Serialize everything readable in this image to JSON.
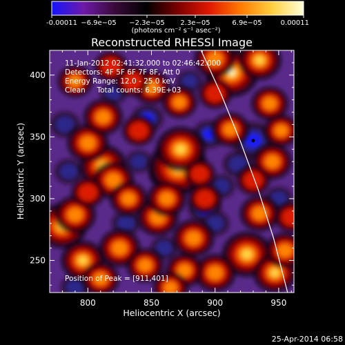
{
  "chart_data": {
    "type": "heatmap",
    "title": "Reconstructed RHESSI Image",
    "xlabel": "Heliocentric X (arcsec)",
    "ylabel": "Heliocentric Y (arcsec)",
    "xlim": [
      770,
      962
    ],
    "ylim": [
      224,
      420
    ],
    "xticks": [
      800,
      850,
      900,
      950
    ],
    "yticks": [
      250,
      300,
      350,
      400
    ],
    "grid": false,
    "colorbar": {
      "position": "top",
      "range": [
        -0.00011,
        0.00011
      ],
      "tick_labels": [
        "-0.00011",
        "−6.9e−05",
        "−2.3e−05",
        "2.3e−05",
        "6.9e−05",
        "0.00011"
      ],
      "label": "(photons cm⁻² s⁻¹ asec⁻²)",
      "colors": [
        "#1414ff",
        "#6e1aa8",
        "#3a0a3a",
        "#000000",
        "#7a0000",
        "#e01800",
        "#ff7a00",
        "#ffd040",
        "#ffffd8"
      ]
    },
    "annotations": [
      "11-Jan-2012 02:41:32.000 to 02:46:42.000",
      "Detectors: 4F 5F 6F 7F 8F, Att 0",
      "Energy Range: 12.0 - 25.0 keV",
      "Clean     Total counts: 6.39E+03"
    ],
    "peak_label": "Position of Peak = [911,401]",
    "peak": [
      911,
      401
    ],
    "marker": [
      930,
      347
    ],
    "limb_arc": [
      [
        889,
        420
      ],
      [
        905,
        384
      ],
      [
        920,
        346
      ],
      [
        934,
        307
      ],
      [
        946,
        268
      ],
      [
        957,
        224
      ]
    ],
    "hot_spots": [
      {
        "x": 871,
        "y": 325,
        "v": 1.0
      },
      {
        "x": 873,
        "y": 340,
        "v": 0.75
      },
      {
        "x": 855,
        "y": 285,
        "v": 0.55
      },
      {
        "x": 862,
        "y": 300,
        "v": 0.5
      },
      {
        "x": 883,
        "y": 268,
        "v": 0.55
      },
      {
        "x": 812,
        "y": 326,
        "v": 0.7
      },
      {
        "x": 820,
        "y": 315,
        "v": 0.55
      },
      {
        "x": 800,
        "y": 345,
        "v": 0.55
      },
      {
        "x": 812,
        "y": 366,
        "v": 0.5
      },
      {
        "x": 780,
        "y": 278,
        "v": 0.75
      },
      {
        "x": 790,
        "y": 287,
        "v": 0.55
      },
      {
        "x": 796,
        "y": 250,
        "v": 0.6
      },
      {
        "x": 825,
        "y": 260,
        "v": 0.55
      },
      {
        "x": 810,
        "y": 235,
        "v": 0.45
      },
      {
        "x": 845,
        "y": 246,
        "v": 0.45
      },
      {
        "x": 913,
        "y": 402,
        "v": 0.85
      },
      {
        "x": 935,
        "y": 412,
        "v": 0.6
      },
      {
        "x": 900,
        "y": 413,
        "v": 0.55
      },
      {
        "x": 912,
        "y": 356,
        "v": 0.45
      },
      {
        "x": 945,
        "y": 330,
        "v": 0.5
      },
      {
        "x": 943,
        "y": 377,
        "v": 0.45
      },
      {
        "x": 952,
        "y": 355,
        "v": 0.4
      },
      {
        "x": 935,
        "y": 288,
        "v": 0.5
      },
      {
        "x": 925,
        "y": 255,
        "v": 0.75
      },
      {
        "x": 947,
        "y": 240,
        "v": 0.6
      },
      {
        "x": 955,
        "y": 258,
        "v": 0.5
      },
      {
        "x": 900,
        "y": 240,
        "v": 0.55
      },
      {
        "x": 876,
        "y": 242,
        "v": 0.45
      },
      {
        "x": 832,
        "y": 300,
        "v": 0.45
      },
      {
        "x": 892,
        "y": 300,
        "v": 0.35
      },
      {
        "x": 840,
        "y": 355,
        "v": 0.35
      },
      {
        "x": 790,
        "y": 395,
        "v": 0.4
      },
      {
        "x": 960,
        "y": 285,
        "v": 0.35
      },
      {
        "x": 900,
        "y": 385,
        "v": 0.35
      },
      {
        "x": 850,
        "y": 390,
        "v": 0.45
      },
      {
        "x": 872,
        "y": 378,
        "v": 0.4
      },
      {
        "x": 800,
        "y": 305,
        "v": 0.35
      },
      {
        "x": 865,
        "y": 228,
        "v": 0.4
      },
      {
        "x": 835,
        "y": 395,
        "v": 0.35
      },
      {
        "x": 818,
        "y": 407,
        "v": 0.35
      },
      {
        "x": 930,
        "y": 315,
        "v": 0.35
      },
      {
        "x": 888,
        "y": 320,
        "v": 0.3
      }
    ],
    "cold_spots": [
      {
        "x": 930,
        "y": 347,
        "v": 0.95
      },
      {
        "x": 918,
        "y": 328,
        "v": 0.5
      },
      {
        "x": 892,
        "y": 292,
        "v": 0.6
      },
      {
        "x": 860,
        "y": 320,
        "v": 0.45
      },
      {
        "x": 847,
        "y": 365,
        "v": 0.55
      },
      {
        "x": 895,
        "y": 352,
        "v": 0.55
      },
      {
        "x": 782,
        "y": 360,
        "v": 0.5
      },
      {
        "x": 785,
        "y": 322,
        "v": 0.45
      },
      {
        "x": 900,
        "y": 280,
        "v": 0.45
      },
      {
        "x": 830,
        "y": 280,
        "v": 0.45
      },
      {
        "x": 790,
        "y": 228,
        "v": 0.45
      },
      {
        "x": 860,
        "y": 260,
        "v": 0.4
      },
      {
        "x": 840,
        "y": 330,
        "v": 0.35
      },
      {
        "x": 880,
        "y": 395,
        "v": 0.35
      },
      {
        "x": 950,
        "y": 300,
        "v": 0.4
      },
      {
        "x": 905,
        "y": 310,
        "v": 0.4
      },
      {
        "x": 820,
        "y": 385,
        "v": 0.35
      }
    ],
    "timestamp": "25-Apr-2014 06:58"
  }
}
